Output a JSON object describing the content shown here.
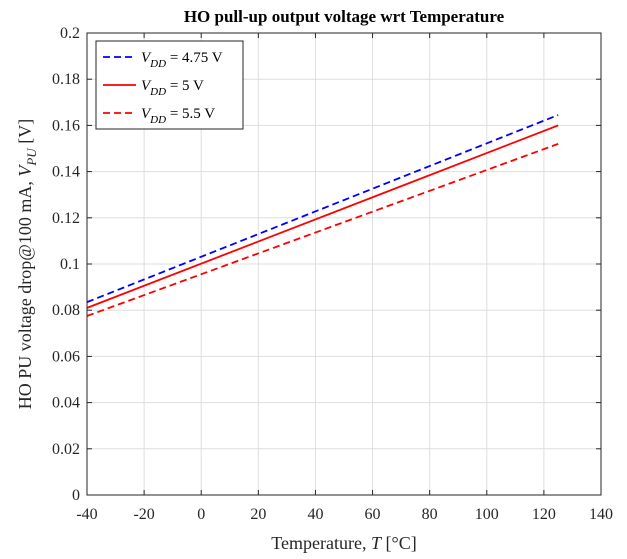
{
  "chart_data": {
    "type": "line",
    "title": "HO pull-up output voltage wrt Temperature",
    "xlabel": {
      "prefix": "Temperature, ",
      "var": "T",
      "suffix": " [°C]"
    },
    "ylabel": {
      "prefix": "HO PU voltage drop@100 mA, ",
      "var": "V",
      "sub": "PU",
      "suffix": " [V]"
    },
    "xlim": [
      -40,
      140
    ],
    "ylim": [
      0,
      0.2
    ],
    "xticks": [
      -40,
      -20,
      0,
      20,
      40,
      60,
      80,
      100,
      120,
      140
    ],
    "yticks": [
      0,
      0.02,
      0.04,
      0.06,
      0.08,
      0.1,
      0.12,
      0.14,
      0.16,
      0.18,
      0.2
    ],
    "xtick_labels": [
      "-40",
      "-20",
      "0",
      "20",
      "40",
      "60",
      "80",
      "100",
      "120",
      "140"
    ],
    "ytick_labels": [
      "0",
      "0.02",
      "0.04",
      "0.06",
      "0.08",
      "0.1",
      "0.12",
      "0.14",
      "0.16",
      "0.18",
      "0.2"
    ],
    "grid": true,
    "legend_position": "top-left",
    "series": [
      {
        "legend_var": "V",
        "legend_sub": "DD",
        "legend_value": " = 4.75 V",
        "color": "#0000ff",
        "dash": true,
        "x": [
          -40,
          125
        ],
        "y": [
          0.0835,
          0.1645
        ]
      },
      {
        "legend_var": "V",
        "legend_sub": "DD",
        "legend_value": " = 5 V",
        "color": "#ff0000",
        "dash": false,
        "x": [
          -40,
          125
        ],
        "y": [
          0.081,
          0.16
        ]
      },
      {
        "legend_var": "V",
        "legend_sub": "DD",
        "legend_value": " = 5.5 V",
        "color": "#ff0000",
        "dash": true,
        "x": [
          -40,
          125
        ],
        "y": [
          0.0775,
          0.152
        ]
      }
    ]
  }
}
